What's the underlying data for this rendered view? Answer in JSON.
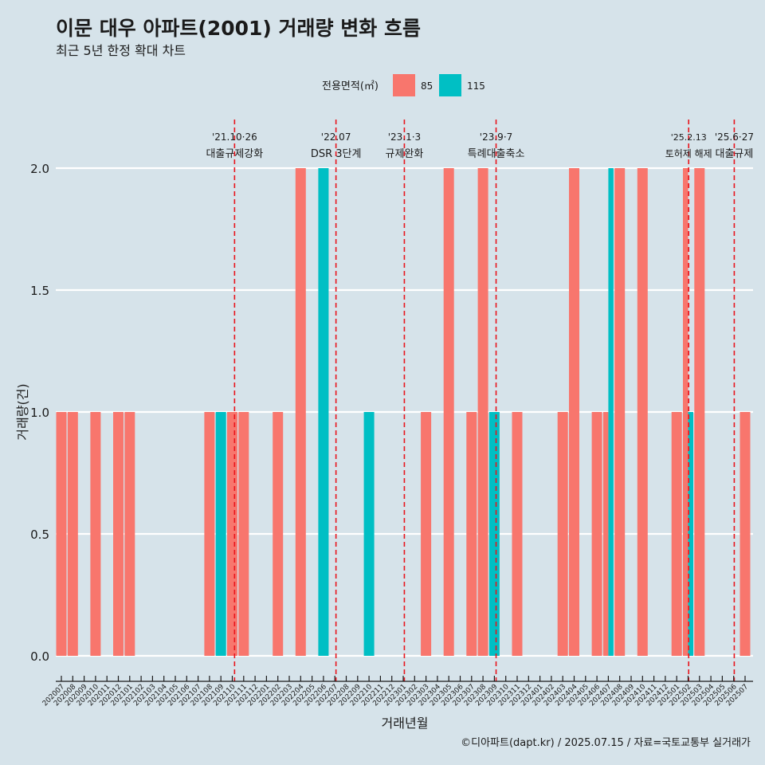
{
  "colors": {
    "background": "#d6e3ea",
    "series_85": "#f8766d",
    "series_115": "#00bfc4",
    "event_line": "#e8141c",
    "gridline": "#ffffff",
    "text": "#1a1a1a"
  },
  "chart_data": {
    "type": "bar",
    "title": "이문 대우 아파트(2001) 거래량 변화 흐름",
    "subtitle": "최근 5년 한정 확대 차트",
    "xlabel": "거래년월",
    "ylabel": "거래량(건)",
    "ylim": [
      0,
      2
    ],
    "yticks": [
      "0.0",
      "0.5",
      "1.0",
      "1.5",
      "2.0"
    ],
    "legend": {
      "title": "전용면적(㎡)",
      "position": "top",
      "entries": [
        {
          "name": "85",
          "color": "#f8766d"
        },
        {
          "name": "115",
          "color": "#00bfc4"
        }
      ]
    },
    "categories": [
      "202007",
      "202008",
      "202009",
      "202010",
      "202011",
      "202012",
      "202101",
      "202102",
      "202103",
      "202104",
      "202105",
      "202106",
      "202107",
      "202108",
      "202109",
      "202110",
      "202111",
      "202112",
      "202201",
      "202202",
      "202203",
      "202204",
      "202205",
      "202206",
      "202207",
      "202208",
      "202209",
      "202210",
      "202211",
      "202212",
      "202301",
      "202302",
      "202303",
      "202304",
      "202305",
      "202306",
      "202307",
      "202308",
      "202309",
      "202310",
      "202311",
      "202312",
      "202401",
      "202402",
      "202403",
      "202404",
      "202405",
      "202406",
      "202407",
      "202408",
      "202409",
      "202410",
      "202411",
      "202412",
      "202501",
      "202502",
      "202503",
      "202504",
      "202505",
      "202506",
      "202507"
    ],
    "bars": [
      {
        "month": "202007",
        "series": "85",
        "value": 1
      },
      {
        "month": "202008",
        "series": "85",
        "value": 1
      },
      {
        "month": "202010",
        "series": "85",
        "value": 1
      },
      {
        "month": "202012",
        "series": "85",
        "value": 1
      },
      {
        "month": "202101",
        "series": "85",
        "value": 1
      },
      {
        "month": "202108",
        "series": "85",
        "value": 1
      },
      {
        "month": "202109",
        "series": "115",
        "value": 1
      },
      {
        "month": "202110",
        "series": "85",
        "value": 1
      },
      {
        "month": "202111",
        "series": "85",
        "value": 1
      },
      {
        "month": "202202",
        "series": "85",
        "value": 1
      },
      {
        "month": "202204",
        "series": "85",
        "value": 2
      },
      {
        "month": "202206",
        "series": "115",
        "value": 2
      },
      {
        "month": "202210",
        "series": "115",
        "value": 1
      },
      {
        "month": "202303",
        "series": "85",
        "value": 1
      },
      {
        "month": "202305",
        "series": "85",
        "value": 2
      },
      {
        "month": "202307",
        "series": "85",
        "value": 1
      },
      {
        "month": "202308",
        "series": "85",
        "value": 2
      },
      {
        "month": "202309",
        "series": "115",
        "value": 1
      },
      {
        "month": "202311",
        "series": "85",
        "value": 1
      },
      {
        "month": "202403",
        "series": "85",
        "value": 1
      },
      {
        "month": "202404",
        "series": "85",
        "value": 2
      },
      {
        "month": "202406",
        "series": "85",
        "value": 1
      },
      {
        "month": "202407",
        "series": "85",
        "value": 1,
        "group": "left"
      },
      {
        "month": "202407",
        "series": "115",
        "value": 2,
        "group": "right"
      },
      {
        "month": "202408",
        "series": "85",
        "value": 2
      },
      {
        "month": "202410",
        "series": "85",
        "value": 2
      },
      {
        "month": "202501",
        "series": "85",
        "value": 1
      },
      {
        "month": "202502",
        "series": "85",
        "value": 2,
        "group": "left"
      },
      {
        "month": "202502",
        "series": "115",
        "value": 1,
        "group": "right"
      },
      {
        "month": "202503",
        "series": "85",
        "value": 2
      },
      {
        "month": "202507",
        "series": "85",
        "value": 1
      }
    ],
    "events": [
      {
        "date_label": "'21.10·26",
        "text": "대출규제강화",
        "month_index": 15.2
      },
      {
        "date_label": "'22.07",
        "text": "DSR 3단계",
        "month_index": 24.1
      },
      {
        "date_label": "'23.1·3",
        "text": "규제완화",
        "month_index": 30.1
      },
      {
        "date_label": "'23.9·7",
        "text": "특례대출축소",
        "month_index": 38.15
      },
      {
        "date_label": "'25.2.13",
        "text": "토허제 해제",
        "month_index": 55.05
      },
      {
        "date_label": "'25.6·27",
        "text": "대출규제",
        "month_index": 59.05
      }
    ]
  },
  "footer": {
    "credit": "©디아파트(dapt.kr) / 2025.07.15 / 자료=국토교통부 실거래가"
  }
}
